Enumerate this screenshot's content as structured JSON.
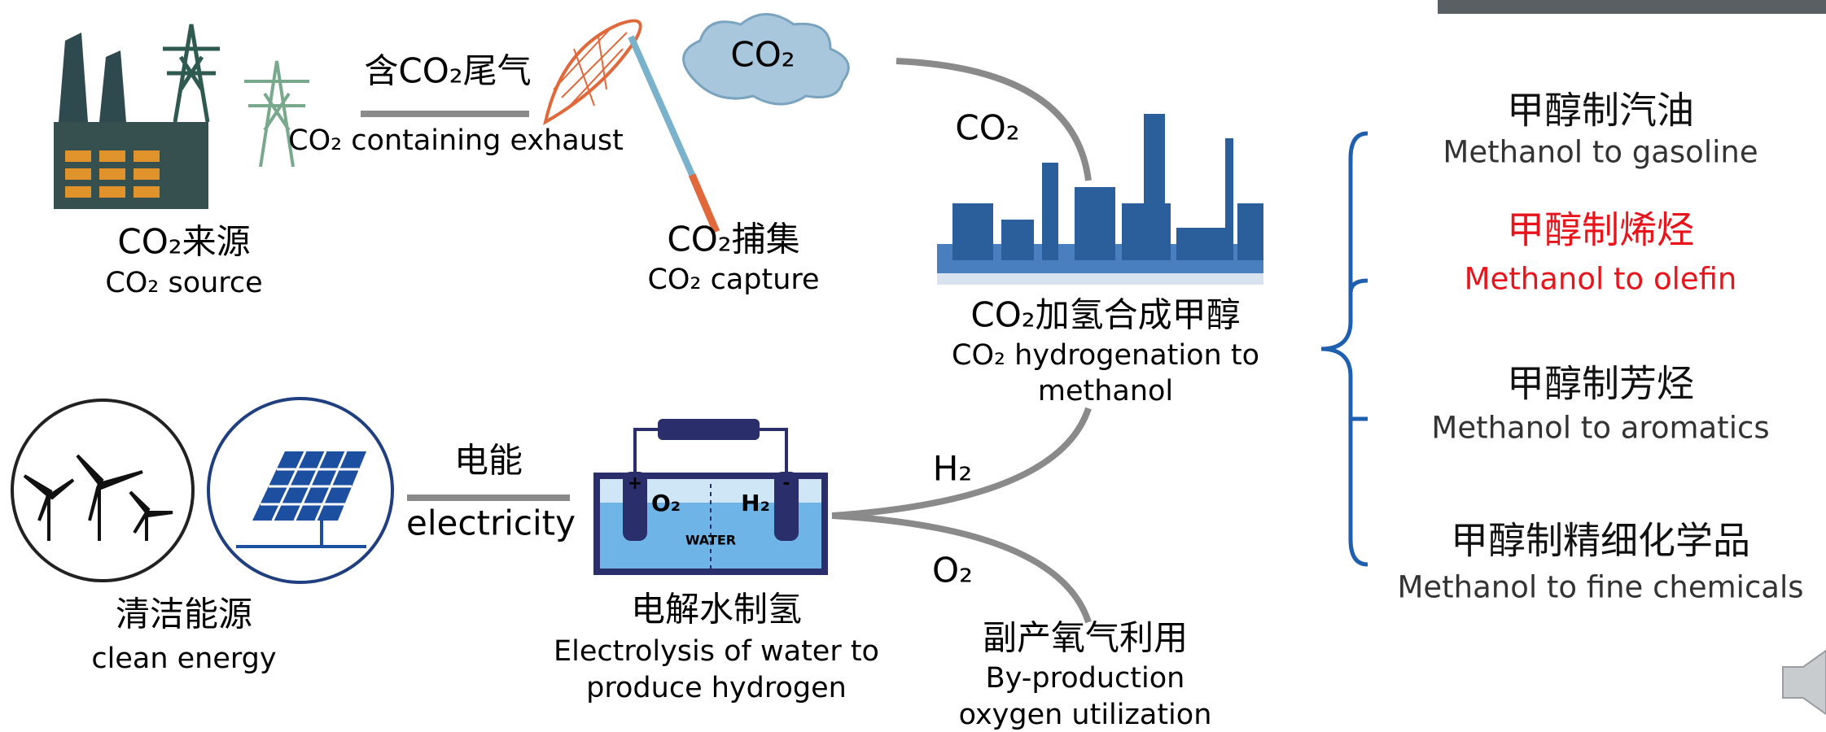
{
  "source": {
    "zh": "CO₂来源",
    "en": "CO₂ source"
  },
  "exhaust": {
    "zh": "含CO₂尾气",
    "en": "CO₂ containing exhaust"
  },
  "cloud": "CO₂",
  "capture": {
    "zh": "CO₂捕集",
    "en": "CO₂ capture"
  },
  "co2_flow": "CO₂",
  "synthesis": {
    "zh": "CO₂加氢合成甲醇",
    "en_line1": "CO₂ hydrogenation to",
    "en_line2": "methanol"
  },
  "clean_energy": {
    "zh": "清洁能源",
    "en": "clean energy"
  },
  "electricity": {
    "zh": "电能",
    "en": "electricity"
  },
  "cell": {
    "plus": "+",
    "minus": "-",
    "o2": "O₂",
    "h2": "H₂",
    "water": "WATER"
  },
  "electrolysis": {
    "zh": "电解水制氢",
    "en_line1": "Electrolysis of water to",
    "en_line2": "produce hydrogen"
  },
  "h2_flow": "H₂",
  "o2_flow": "O₂",
  "oxygen": {
    "zh": "副产氧气利用",
    "en_line1": "By-production",
    "en_line2": "oxygen utilization"
  },
  "products": [
    {
      "zh": "甲醇制汽油",
      "en": "Methanol to gasoline"
    },
    {
      "zh": "甲醇制烯烃",
      "en": "Methanol to olefin"
    },
    {
      "zh": "甲醇制芳烃",
      "en": "Methanol to aromatics"
    },
    {
      "zh": "甲醇制精细化学品",
      "en": "Methanol to fine chemicals"
    }
  ]
}
